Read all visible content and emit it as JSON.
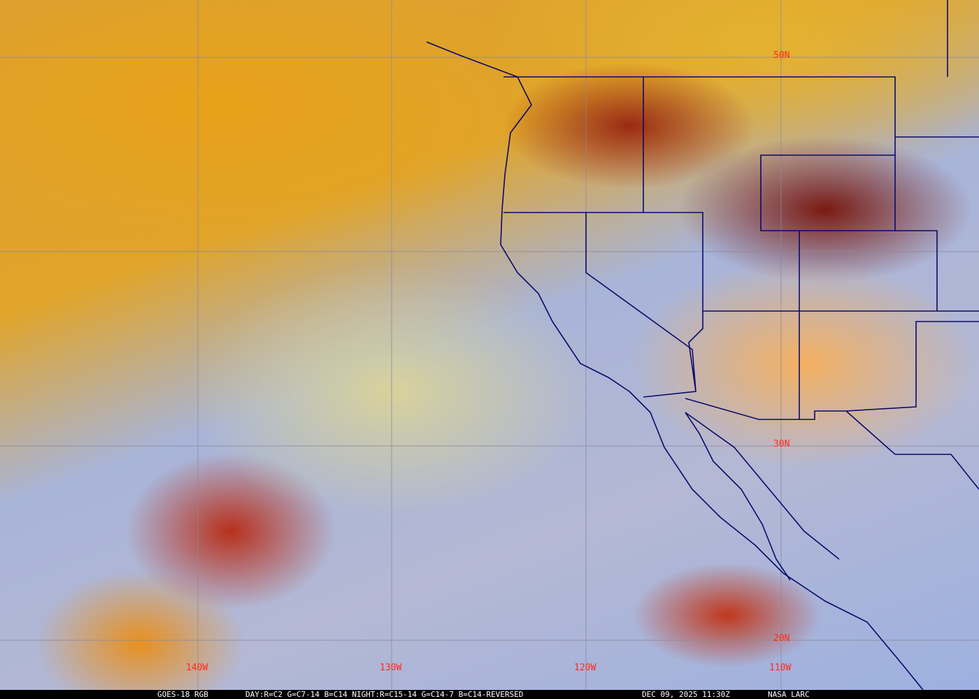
{
  "satellite_image": {
    "grid_labels": {
      "lon": [
        "140W",
        "130W",
        "120W",
        "110W"
      ],
      "lat": [
        "50N",
        "30N",
        "20N"
      ]
    },
    "colors": {
      "grid": "#8a8a9a",
      "borders": "#0a0a6a",
      "labels": "#ff2a1a"
    }
  },
  "caption": {
    "product": "GOES-18 RGB",
    "recipe": "DAY:R=C2 G=C7-14 B=C14 NIGHT:R=C15-14 G=C14-7 B=C14-REVERSED",
    "timestamp": "DEC 09, 2025 11:30Z",
    "credit": "NASA LARC"
  }
}
